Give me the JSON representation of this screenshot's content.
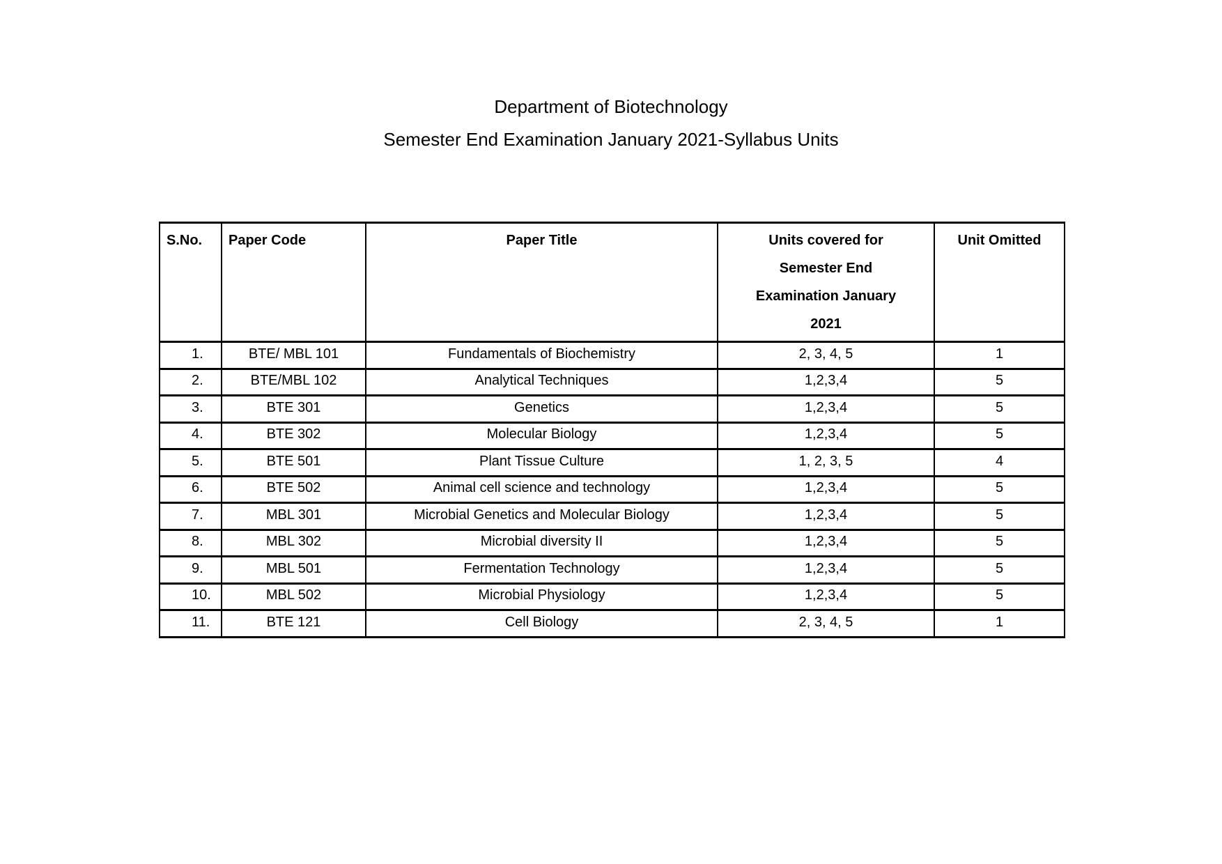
{
  "document": {
    "title": "Department of Biotechnology",
    "subtitle": "Semester End Examination January 2021-Syllabus Units"
  },
  "table": {
    "headers": {
      "sno": "S.No.",
      "code": "Paper Code",
      "title": "Paper Title",
      "units": "Units covered for\nSemester End\nExamination January\n2021",
      "omitted": "Unit Omitted"
    },
    "rows": [
      {
        "sno": "1.",
        "code": "BTE/ MBL 101",
        "title": "Fundamentals of Biochemistry",
        "units": "2, 3, 4, 5",
        "omitted": "1"
      },
      {
        "sno": "2.",
        "code": "BTE/MBL 102",
        "title": "Analytical Techniques",
        "units": "1,2,3,4",
        "omitted": "5"
      },
      {
        "sno": "3.",
        "code": "BTE 301",
        "title": "Genetics",
        "units": "1,2,3,4",
        "omitted": "5"
      },
      {
        "sno": "4.",
        "code": "BTE 302",
        "title": "Molecular Biology",
        "units": "1,2,3,4",
        "omitted": "5"
      },
      {
        "sno": "5.",
        "code": "BTE 501",
        "title": "Plant Tissue Culture",
        "units": "1, 2, 3, 5",
        "omitted": "4"
      },
      {
        "sno": "6.",
        "code": "BTE 502",
        "title": "Animal cell science and technology",
        "units": "1,2,3,4",
        "omitted": "5"
      },
      {
        "sno": "7.",
        "code": "MBL 301",
        "title": "Microbial Genetics and Molecular Biology",
        "units": "1,2,3,4",
        "omitted": "5"
      },
      {
        "sno": "8.",
        "code": "MBL 302",
        "title": "Microbial diversity II",
        "units": "1,2,3,4",
        "omitted": "5"
      },
      {
        "sno": "9.",
        "code": "MBL 501",
        "title": "Fermentation Technology",
        "units": "1,2,3,4",
        "omitted": "5"
      },
      {
        "sno": "10.",
        "code": "MBL 502",
        "title": "Microbial Physiology",
        "units": "1,2,3,4",
        "omitted": "5"
      },
      {
        "sno": "11.",
        "code": "BTE 121",
        "title": "Cell Biology",
        "units": "2, 3, 4, 5",
        "omitted": "1"
      }
    ]
  }
}
